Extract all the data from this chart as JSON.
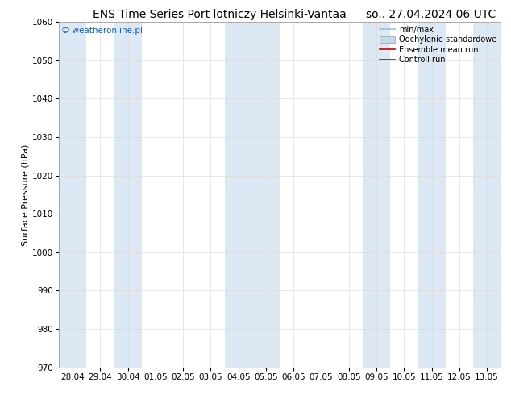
{
  "title_left": "ENS Time Series Port lotniczy Helsinki-Vantaa",
  "title_right": "so.. 27.04.2024 06 UTC",
  "ylabel": "Surface Pressure (hPa)",
  "ylim": [
    970,
    1060
  ],
  "yticks": [
    970,
    980,
    990,
    1000,
    1010,
    1020,
    1030,
    1040,
    1050,
    1060
  ],
  "x_labels": [
    "28.04",
    "29.04",
    "30.04",
    "01.05",
    "02.05",
    "03.05",
    "04.05",
    "05.05",
    "06.05",
    "07.05",
    "08.05",
    "09.05",
    "10.05",
    "11.05",
    "12.05",
    "13.05"
  ],
  "n_ticks": 16,
  "shaded_columns": [
    0,
    2,
    6,
    7,
    11,
    13,
    15
  ],
  "shade_color": "#dce9f5",
  "background_color": "#ffffff",
  "plot_bg_color": "#ffffff",
  "watermark": "© weatheronline.pl",
  "legend_entries": [
    "min/max",
    "Odchylenie standardowe",
    "Ensemble mean run",
    "Controll run"
  ],
  "legend_line_colors": [
    "#a0b8d0",
    "#b8cfe0",
    "#cc0000",
    "#006600"
  ],
  "title_fontsize": 10,
  "axis_fontsize": 8,
  "tick_fontsize": 7.5
}
